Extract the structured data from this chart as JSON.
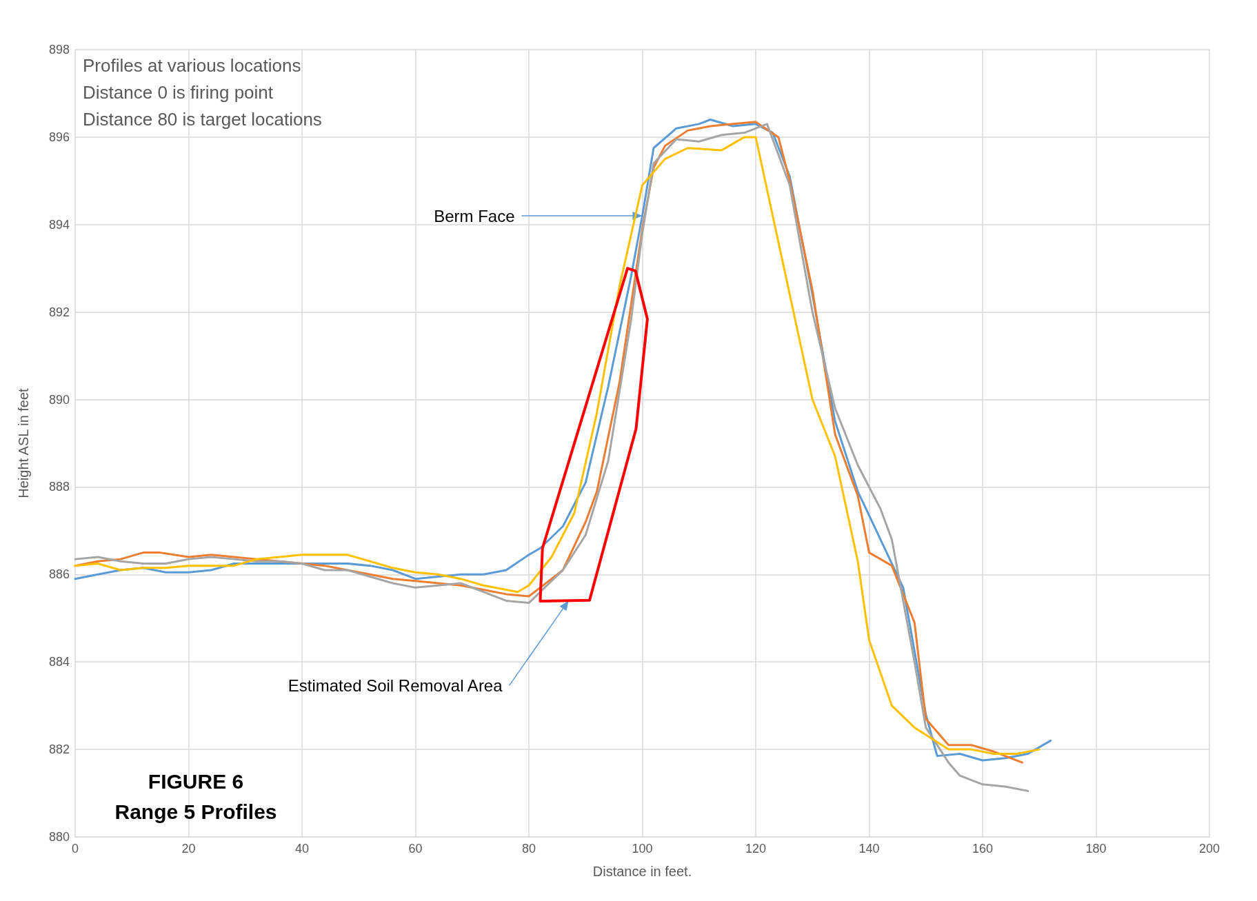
{
  "chart_data": {
    "type": "line",
    "title": "FIGURE 6",
    "subtitle": "Range 5 Profiles",
    "xlabel": "Distance in feet.",
    "ylabel": "Height ASL in feet",
    "xlim": [
      0,
      200
    ],
    "xticks": [
      0,
      20,
      40,
      60,
      80,
      100,
      120,
      140,
      160,
      180,
      200
    ],
    "ylim": [
      880,
      898
    ],
    "yticks": [
      880,
      882,
      884,
      886,
      888,
      890,
      892,
      894,
      896,
      898
    ],
    "grid": true,
    "marker": "none",
    "line_style": "solid",
    "annotations": [
      "Profiles at various locations",
      "Distance 0 is firing point",
      "Distance 80 is target locations",
      {
        "text": "Berm Face",
        "x": 100,
        "y": 894.2
      },
      {
        "text": "Estimated Soil Removal Area",
        "x": 87,
        "y": 885.4
      }
    ],
    "series": [
      {
        "color": "#5b9bd5",
        "x": [
          0,
          4,
          8,
          12,
          16,
          20,
          24,
          28,
          32,
          36,
          40,
          44,
          48,
          52,
          56,
          60,
          64,
          68,
          72,
          76,
          80,
          82,
          86,
          90,
          94,
          98,
          100,
          102,
          106,
          110,
          112,
          116,
          120,
          123,
          126,
          130,
          134,
          138,
          142,
          146,
          150,
          152,
          156,
          160,
          164,
          168,
          172
        ],
        "values": [
          885.9,
          886.0,
          886.1,
          886.15,
          886.05,
          886.05,
          886.1,
          886.25,
          886.25,
          886.25,
          886.25,
          886.25,
          886.25,
          886.2,
          886.1,
          885.9,
          885.95,
          886.0,
          886.0,
          886.1,
          886.45,
          886.6,
          887.1,
          888.1,
          890.3,
          892.8,
          894.2,
          895.75,
          896.2,
          896.3,
          896.4,
          896.25,
          896.3,
          896.1,
          895.1,
          892.4,
          889.5,
          887.9,
          886.8,
          885.7,
          882.8,
          881.85,
          881.9,
          881.75,
          881.8,
          881.9,
          882.2
        ]
      },
      {
        "color": "#ed7d31",
        "x": [
          0,
          4,
          8,
          12,
          15,
          20,
          24,
          28,
          32,
          36,
          40,
          44,
          48,
          52,
          56,
          60,
          64,
          68,
          72,
          76,
          80,
          82,
          86,
          90,
          92,
          96,
          100,
          102,
          104,
          108,
          112,
          116,
          120,
          124,
          126,
          130,
          134,
          138,
          140,
          144,
          148,
          150,
          154,
          158,
          162,
          167
        ],
        "values": [
          886.2,
          886.3,
          886.35,
          886.5,
          886.5,
          886.4,
          886.45,
          886.4,
          886.35,
          886.3,
          886.25,
          886.2,
          886.1,
          886.0,
          885.9,
          885.85,
          885.8,
          885.75,
          885.65,
          885.55,
          885.5,
          885.7,
          886.1,
          887.2,
          887.9,
          890.4,
          893.9,
          895.3,
          895.8,
          896.15,
          896.25,
          896.3,
          896.35,
          896.0,
          895.0,
          892.5,
          889.2,
          887.8,
          886.5,
          886.2,
          884.9,
          882.7,
          882.1,
          882.1,
          881.95,
          881.7
        ]
      },
      {
        "color": "#a5a5a5",
        "x": [
          0,
          4,
          8,
          12,
          16,
          20,
          24,
          28,
          32,
          36,
          40,
          44,
          48,
          52,
          56,
          60,
          64,
          68,
          72,
          76,
          80,
          82,
          86,
          90,
          94,
          98,
          100,
          102,
          106,
          110,
          114,
          118,
          122,
          126,
          130,
          134,
          138,
          142,
          144,
          148,
          150,
          154,
          156,
          160,
          164,
          168
        ],
        "values": [
          886.35,
          886.4,
          886.3,
          886.25,
          886.25,
          886.35,
          886.4,
          886.35,
          886.3,
          886.3,
          886.25,
          886.1,
          886.1,
          885.95,
          885.8,
          885.7,
          885.75,
          885.8,
          885.6,
          885.4,
          885.35,
          885.6,
          886.1,
          886.9,
          888.6,
          891.8,
          893.8,
          895.4,
          895.95,
          895.9,
          896.05,
          896.1,
          896.3,
          894.9,
          892.0,
          889.8,
          888.5,
          887.5,
          886.8,
          884.0,
          882.5,
          881.7,
          881.4,
          881.2,
          881.15,
          881.05
        ]
      },
      {
        "color": "#ffc000",
        "x": [
          0,
          4,
          8,
          12,
          16,
          20,
          24,
          28,
          32,
          36,
          40,
          44,
          48,
          52,
          56,
          60,
          64,
          68,
          72,
          76,
          78,
          80,
          84,
          88,
          92,
          96,
          100,
          104,
          108,
          114,
          118,
          120,
          124,
          130,
          134,
          138,
          140,
          144,
          148,
          154,
          158,
          162,
          166,
          170
        ],
        "values": [
          886.2,
          886.25,
          886.1,
          886.15,
          886.15,
          886.2,
          886.2,
          886.2,
          886.35,
          886.4,
          886.45,
          886.45,
          886.45,
          886.3,
          886.15,
          886.05,
          886.0,
          885.9,
          885.75,
          885.65,
          885.6,
          885.75,
          886.4,
          887.4,
          889.7,
          892.6,
          894.9,
          895.5,
          895.75,
          895.7,
          896.0,
          896.0,
          893.6,
          890.0,
          888.7,
          886.3,
          884.5,
          883.0,
          882.5,
          882.0,
          882.0,
          881.9,
          881.9,
          882.0
        ]
      },
      {
        "color": "#ff0000",
        "x": [
          82.0,
          82.4,
          97.4,
          98.8,
          100.9,
          null,
          82.0,
          90.7,
          98.9,
          100.9
        ],
        "values": [
          885.39,
          886.6,
          893.0,
          892.94,
          891.84,
          null,
          885.39,
          885.41,
          889.33,
          891.84
        ]
      }
    ]
  }
}
